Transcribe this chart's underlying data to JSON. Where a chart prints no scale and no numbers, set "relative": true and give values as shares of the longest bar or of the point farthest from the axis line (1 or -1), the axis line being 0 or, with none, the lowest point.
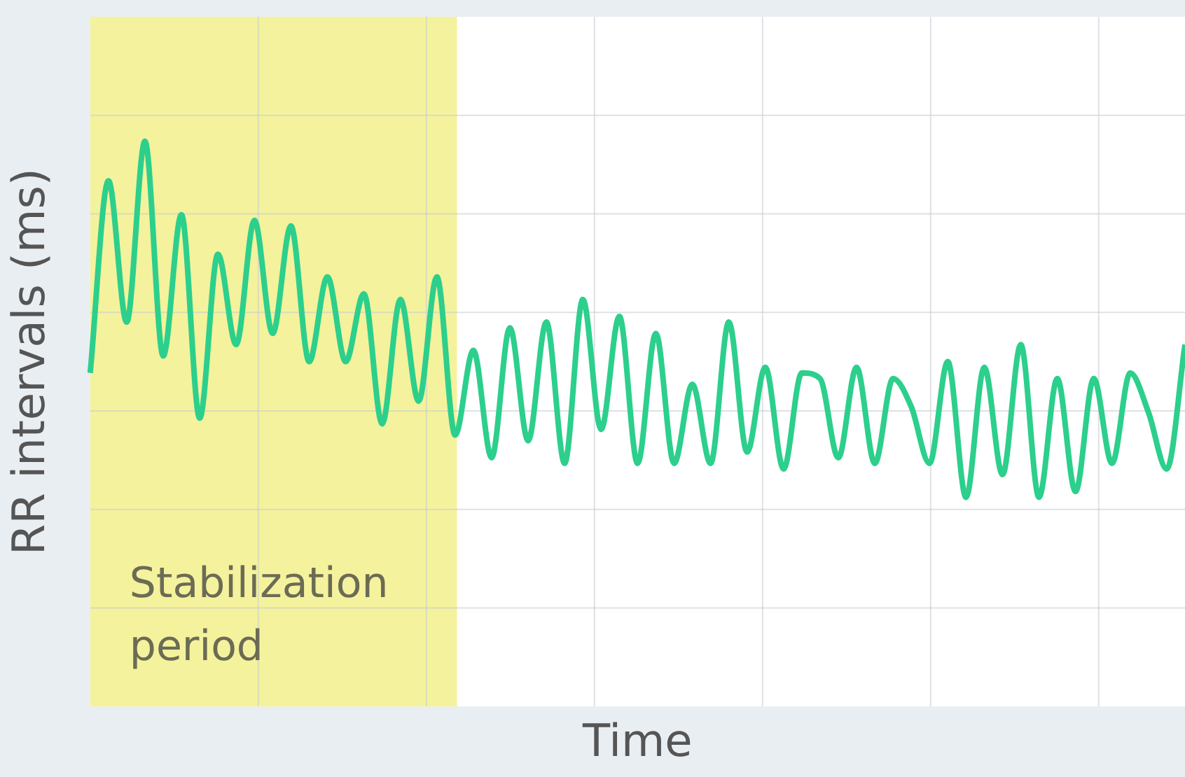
{
  "chart_data": {
    "type": "line",
    "xlabel": "Time",
    "ylabel": "RR intervals (ms)",
    "relative": true,
    "grid": true,
    "legend": false,
    "marker": "none",
    "line_style": "solid",
    "categories": [
      null,
      null,
      null,
      null,
      null,
      null,
      null,
      null,
      null,
      null,
      null,
      null,
      null,
      null,
      null,
      null,
      null,
      null,
      null,
      null,
      null,
      null,
      null,
      null,
      null,
      null,
      null,
      null,
      null,
      null,
      null,
      null,
      null,
      null,
      null,
      null,
      null,
      null,
      null,
      null,
      null,
      null,
      null,
      null,
      null,
      null,
      null,
      null,
      null,
      null,
      null,
      null,
      null,
      null,
      null,
      null,
      null,
      null,
      null,
      null,
      null
    ],
    "series": [
      {
        "color": "#2ccf8c",
        "values": [
          0.59,
          0.93,
          0.68,
          1,
          0.62,
          0.87,
          0.51,
          0.8,
          0.64,
          0.86,
          0.66,
          0.85,
          0.61,
          0.76,
          0.61,
          0.73,
          0.5,
          0.72,
          0.54,
          0.76,
          0.48,
          0.63,
          0.44,
          0.67,
          0.47,
          0.68,
          0.43,
          0.72,
          0.49,
          0.69,
          0.43,
          0.66,
          0.43,
          0.57,
          0.43,
          0.68,
          0.45,
          0.6,
          0.42,
          0.59,
          0.58,
          0.44,
          0.6,
          0.43,
          0.58,
          0.53,
          0.43,
          0.61,
          0.37,
          0.6,
          0.41,
          0.64,
          0.37,
          0.58,
          0.38,
          0.58,
          0.43,
          0.59,
          0.52,
          0.42,
          0.64
        ]
      }
    ],
    "annotations": [
      "Stabilization\nperiod"
    ]
  }
}
